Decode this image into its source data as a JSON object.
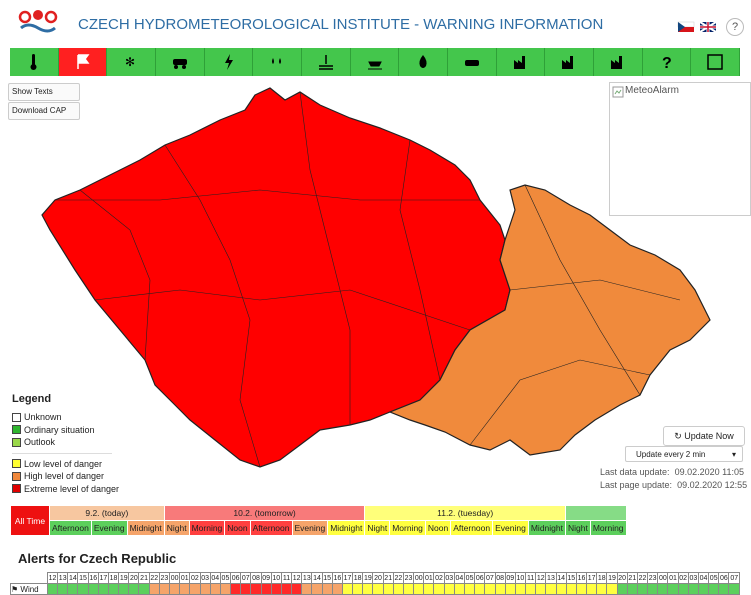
{
  "header": {
    "title": "CZECH HYDROMETEOROLOGICAL INSTITUTE - WARNING INFORMATION",
    "help": "?"
  },
  "buttons": [
    "Show Texts",
    "Download CAP"
  ],
  "image_alt": "MeteoAlarm",
  "legend": {
    "title": "Legend",
    "groups": [
      [
        {
          "label": "Unknown",
          "color": "#ffffff"
        },
        {
          "label": "Ordinary situation",
          "color": "#2fb52f"
        },
        {
          "label": "Outlook",
          "color": "#9ad84a"
        }
      ],
      [
        {
          "label": "Low level of danger",
          "color": "#ffff33"
        },
        {
          "label": "High level of danger",
          "color": "#f0883c"
        },
        {
          "label": "Extreme level of danger",
          "color": "#e00000"
        }
      ]
    ]
  },
  "controls": {
    "update_now": "Update Now",
    "update_interval": "Update every 2 min",
    "last_data": {
      "label": "Last data update:",
      "value": "09.02.2020 11:05"
    },
    "last_page": {
      "label": "Last page update:",
      "value": "09.02.2020 12:55"
    }
  },
  "timeline": {
    "all_time": "All Time",
    "days": [
      {
        "label": "9.2. (today)",
        "color": "#f7c7a0",
        "parts": [
          {
            "label": "Afternoon",
            "color": "#5ccf5c"
          },
          {
            "label": "Evening",
            "color": "#5ccf5c"
          },
          {
            "label": "Midnight",
            "color": "#f5a46a"
          }
        ]
      },
      {
        "label": "10.2. (tomorrow)",
        "color": "#f87a7a",
        "parts": [
          {
            "label": "Night",
            "color": "#f5a46a"
          },
          {
            "label": "Morning",
            "color": "#ff4040"
          },
          {
            "label": "Noon",
            "color": "#ff4040"
          },
          {
            "label": "Afternoon",
            "color": "#ff4040"
          },
          {
            "label": "Evening",
            "color": "#f5a46a"
          },
          {
            "label": "Midnight",
            "color": "#ffff40"
          }
        ]
      },
      {
        "label": "11.2. (tuesday)",
        "color": "#ffff7a",
        "parts": [
          {
            "label": "Night",
            "color": "#ffff40"
          },
          {
            "label": "Morning",
            "color": "#ffff40"
          },
          {
            "label": "Noon",
            "color": "#ffff40"
          },
          {
            "label": "Afternoon",
            "color": "#ffff40"
          },
          {
            "label": "Evening",
            "color": "#ffff40"
          },
          {
            "label": "Midnight",
            "color": "#5ccf5c"
          }
        ]
      },
      {
        "label": null,
        "color": "#86dc86",
        "parts": [
          {
            "label": "Night",
            "color": "#5ccf5c"
          },
          {
            "label": "Morning",
            "color": "#5ccf5c"
          }
        ]
      }
    ]
  },
  "alerts": {
    "title": "Alerts for Czech Republic",
    "hours": [
      "12",
      "13",
      "14",
      "15",
      "16",
      "17",
      "18",
      "19",
      "20",
      "21",
      "22",
      "23",
      "00",
      "01",
      "02",
      "03",
      "04",
      "05",
      "06",
      "07",
      "08",
      "09",
      "10",
      "11",
      "12",
      "13",
      "14",
      "15",
      "16",
      "17",
      "18",
      "19",
      "20",
      "21",
      "22",
      "23",
      "00",
      "01",
      "02",
      "03",
      "04",
      "05",
      "06",
      "07",
      "08",
      "09",
      "10",
      "11",
      "12",
      "13",
      "14",
      "15",
      "16",
      "17",
      "18",
      "19",
      "20",
      "21",
      "22",
      "23",
      "00",
      "01",
      "02",
      "03",
      "04",
      "05",
      "06",
      "07"
    ],
    "rows": [
      {
        "label": "Wind",
        "colors": [
          "#5ccf5c",
          "#5ccf5c",
          "#5ccf5c",
          "#5ccf5c",
          "#5ccf5c",
          "#5ccf5c",
          "#5ccf5c",
          "#5ccf5c",
          "#5ccf5c",
          "#5ccf5c",
          "#f5a46a",
          "#f5a46a",
          "#f5a46a",
          "#f5a46a",
          "#f5a46a",
          "#f5a46a",
          "#f5a46a",
          "#f5a46a",
          "#ff2a2a",
          "#ff2a2a",
          "#ff2a2a",
          "#ff2a2a",
          "#ff2a2a",
          "#ff2a2a",
          "#ff2a2a",
          "#f5a46a",
          "#f5a46a",
          "#f5a46a",
          "#f5a46a",
          "#ffff40",
          "#ffff40",
          "#ffff40",
          "#ffff40",
          "#ffff40",
          "#ffff40",
          "#ffff40",
          "#ffff40",
          "#ffff40",
          "#ffff40",
          "#ffff40",
          "#ffff40",
          "#ffff40",
          "#ffff40",
          "#ffff40",
          "#ffff40",
          "#ffff40",
          "#ffff40",
          "#ffff40",
          "#ffff40",
          "#ffff40",
          "#ffff40",
          "#ffff40",
          "#ffff40",
          "#ffff40",
          "#ffff40",
          "#ffff40",
          "#5ccf5c",
          "#5ccf5c",
          "#5ccf5c",
          "#5ccf5c",
          "#5ccf5c",
          "#5ccf5c",
          "#5ccf5c",
          "#5ccf5c",
          "#5ccf5c",
          "#5ccf5c",
          "#5ccf5c",
          "#5ccf5c"
        ]
      }
    ]
  }
}
